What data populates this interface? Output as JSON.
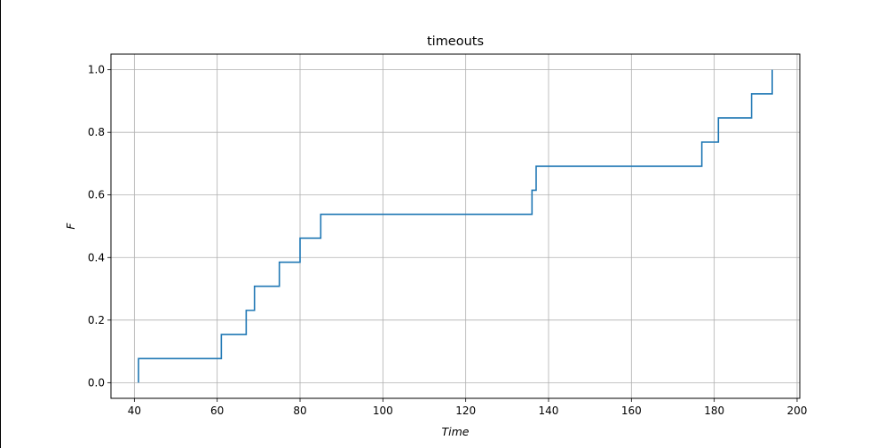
{
  "chart_data": {
    "type": "line",
    "step": "post",
    "title": "timeouts",
    "xlabel": "Time",
    "ylabel": "F",
    "xlim": [
      34.35,
      200.65
    ],
    "ylim": [
      -0.05,
      1.05
    ],
    "xticks": [
      40,
      60,
      80,
      100,
      120,
      140,
      160,
      180,
      200
    ],
    "yticks": [
      0.0,
      0.2,
      0.4,
      0.6,
      0.8,
      1.0
    ],
    "xtick_labels": [
      "40",
      "60",
      "80",
      "100",
      "120",
      "140",
      "160",
      "180",
      "200"
    ],
    "ytick_labels": [
      "0.0",
      "0.2",
      "0.4",
      "0.6",
      "0.8",
      "1.0"
    ],
    "grid": true,
    "line_color": "#1f77b4",
    "grid_color": "#b0b0b0",
    "series": [
      {
        "x": [
          41,
          41,
          61,
          67,
          69,
          75,
          80,
          85,
          136,
          137,
          177,
          181,
          189,
          194
        ],
        "y": [
          0.0,
          0.077,
          0.154,
          0.231,
          0.308,
          0.385,
          0.462,
          0.538,
          0.615,
          0.692,
          0.769,
          0.846,
          0.923,
          1.0
        ]
      }
    ]
  }
}
